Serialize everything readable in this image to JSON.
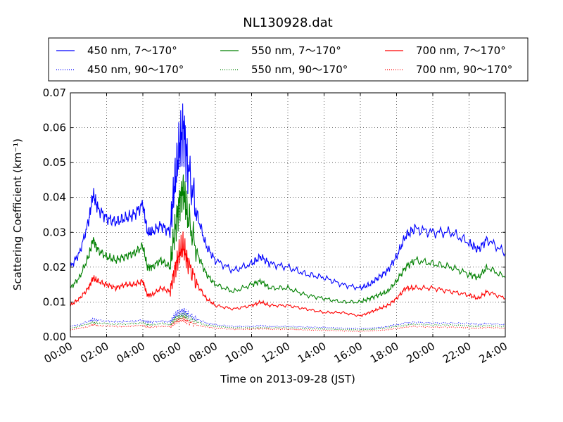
{
  "chart_data": {
    "type": "line",
    "title": "NL130928.dat",
    "xlabel": "Time on 2013-09-28 (JST)",
    "ylabel": "Scattering Coefficient (km⁻¹)",
    "xlim": [
      0,
      24
    ],
    "ylim": [
      0,
      0.07
    ],
    "xticks": [
      0,
      2,
      4,
      6,
      8,
      10,
      12,
      14,
      16,
      18,
      20,
      22,
      24
    ],
    "xtick_labels": [
      "00:00",
      "02:00",
      "04:00",
      "06:00",
      "08:00",
      "10:00",
      "12:00",
      "14:00",
      "16:00",
      "18:00",
      "20:00",
      "22:00",
      "24:00"
    ],
    "yticks": [
      0,
      0.01,
      0.02,
      0.03,
      0.04,
      0.05,
      0.06,
      0.07
    ],
    "ytick_labels": [
      "0.00",
      "0.01",
      "0.02",
      "0.03",
      "0.04",
      "0.05",
      "0.06",
      "0.07"
    ],
    "grid": true,
    "legend_position": "top",
    "x": [
      0,
      0.5,
      1,
      1.25,
      1.5,
      2,
      2.5,
      3,
      3.5,
      4,
      4.25,
      4.5,
      5,
      5.5,
      5.75,
      6,
      6.25,
      6.5,
      7,
      7.5,
      8,
      9,
      10,
      10.5,
      11,
      12,
      13,
      14,
      15,
      16,
      16.5,
      17,
      17.5,
      18,
      18.5,
      19,
      20,
      21,
      22,
      22.5,
      23,
      24
    ],
    "series": [
      {
        "name": "450 nm, 7～170°",
        "color": "#0000ff",
        "style": "solid",
        "values": [
          0.02,
          0.024,
          0.033,
          0.041,
          0.037,
          0.034,
          0.033,
          0.034,
          0.035,
          0.038,
          0.03,
          0.03,
          0.032,
          0.03,
          0.044,
          0.054,
          0.06,
          0.048,
          0.035,
          0.026,
          0.022,
          0.019,
          0.021,
          0.023,
          0.021,
          0.02,
          0.018,
          0.017,
          0.015,
          0.014,
          0.015,
          0.017,
          0.019,
          0.023,
          0.029,
          0.031,
          0.03,
          0.03,
          0.027,
          0.025,
          0.028,
          0.024
        ]
      },
      {
        "name": "450 nm, 90～170°",
        "color": "#0000ff",
        "style": "dotted",
        "values": [
          0.003,
          0.0035,
          0.0045,
          0.005,
          0.0048,
          0.0045,
          0.0043,
          0.0044,
          0.0045,
          0.0048,
          0.0042,
          0.0042,
          0.0045,
          0.0043,
          0.006,
          0.007,
          0.0075,
          0.0065,
          0.005,
          0.004,
          0.0035,
          0.003,
          0.003,
          0.0032,
          0.003,
          0.003,
          0.0028,
          0.0027,
          0.0025,
          0.0024,
          0.0025,
          0.0027,
          0.003,
          0.0035,
          0.004,
          0.0042,
          0.004,
          0.004,
          0.0038,
          0.0036,
          0.0038,
          0.0035
        ]
      },
      {
        "name": "550 nm, 7～170°",
        "color": "#008000",
        "style": "solid",
        "values": [
          0.014,
          0.017,
          0.023,
          0.028,
          0.025,
          0.023,
          0.022,
          0.023,
          0.024,
          0.026,
          0.02,
          0.02,
          0.022,
          0.02,
          0.03,
          0.038,
          0.042,
          0.034,
          0.024,
          0.018,
          0.015,
          0.013,
          0.015,
          0.016,
          0.014,
          0.014,
          0.012,
          0.011,
          0.01,
          0.01,
          0.011,
          0.012,
          0.013,
          0.016,
          0.02,
          0.022,
          0.021,
          0.02,
          0.018,
          0.017,
          0.02,
          0.017
        ]
      },
      {
        "name": "550 nm, 90～170°",
        "color": "#008000",
        "style": "dotted",
        "values": [
          0.0025,
          0.003,
          0.0038,
          0.0042,
          0.004,
          0.0038,
          0.0036,
          0.0037,
          0.0038,
          0.004,
          0.0035,
          0.0035,
          0.0038,
          0.0036,
          0.005,
          0.0058,
          0.0062,
          0.0054,
          0.0042,
          0.0034,
          0.003,
          0.0026,
          0.0026,
          0.0027,
          0.0026,
          0.0026,
          0.0024,
          0.0023,
          0.0021,
          0.002,
          0.0021,
          0.0023,
          0.0026,
          0.003,
          0.0034,
          0.0036,
          0.0034,
          0.0034,
          0.0032,
          0.003,
          0.0032,
          0.003
        ]
      },
      {
        "name": "700 nm, 7～170°",
        "color": "#ff0000",
        "style": "solid",
        "values": [
          0.009,
          0.011,
          0.014,
          0.017,
          0.016,
          0.015,
          0.014,
          0.015,
          0.015,
          0.016,
          0.012,
          0.012,
          0.014,
          0.013,
          0.019,
          0.024,
          0.026,
          0.021,
          0.015,
          0.011,
          0.009,
          0.008,
          0.009,
          0.01,
          0.009,
          0.009,
          0.008,
          0.007,
          0.007,
          0.006,
          0.007,
          0.008,
          0.009,
          0.011,
          0.014,
          0.014,
          0.014,
          0.013,
          0.012,
          0.011,
          0.013,
          0.011
        ]
      },
      {
        "name": "700 nm, 90～170°",
        "color": "#ff0000",
        "style": "dotted",
        "values": [
          0.002,
          0.0025,
          0.003,
          0.0035,
          0.0033,
          0.0031,
          0.003,
          0.003,
          0.0031,
          0.0033,
          0.0028,
          0.0028,
          0.003,
          0.0029,
          0.004,
          0.0047,
          0.005,
          0.0044,
          0.0034,
          0.0028,
          0.0025,
          0.0022,
          0.0022,
          0.0023,
          0.0022,
          0.0022,
          0.002,
          0.0019,
          0.0017,
          0.0016,
          0.0017,
          0.0019,
          0.0021,
          0.0025,
          0.0028,
          0.003,
          0.0028,
          0.0028,
          0.0026,
          0.0025,
          0.0027,
          0.0025
        ]
      }
    ]
  }
}
